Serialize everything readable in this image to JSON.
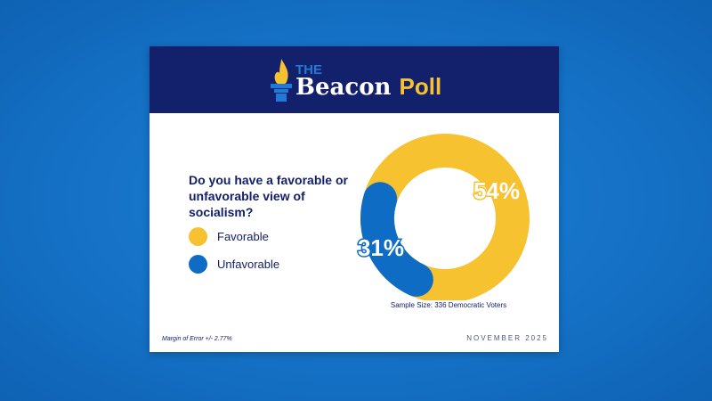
{
  "brand": {
    "the": "THE",
    "name": "Beacon",
    "poll": "Poll"
  },
  "chart_data": {
    "type": "pie",
    "title": "Do you have a favorable or unfavorable view of socialism?",
    "categories": [
      "Favorable",
      "Unfavorable"
    ],
    "values": [
      54,
      31
    ],
    "labels": [
      "54%",
      "31%"
    ],
    "colors": [
      "#f6c230",
      "#0f6cc4"
    ]
  },
  "legend": [
    {
      "label": "Favorable",
      "color": "#f6c230"
    },
    {
      "label": "Unfavorable",
      "color": "#0f6cc4"
    }
  ],
  "sample": "Sample Size: 336 Democratic Voters",
  "moe": "Margin of Error +/- 2.77%",
  "date": "NOVEMBER 2025"
}
